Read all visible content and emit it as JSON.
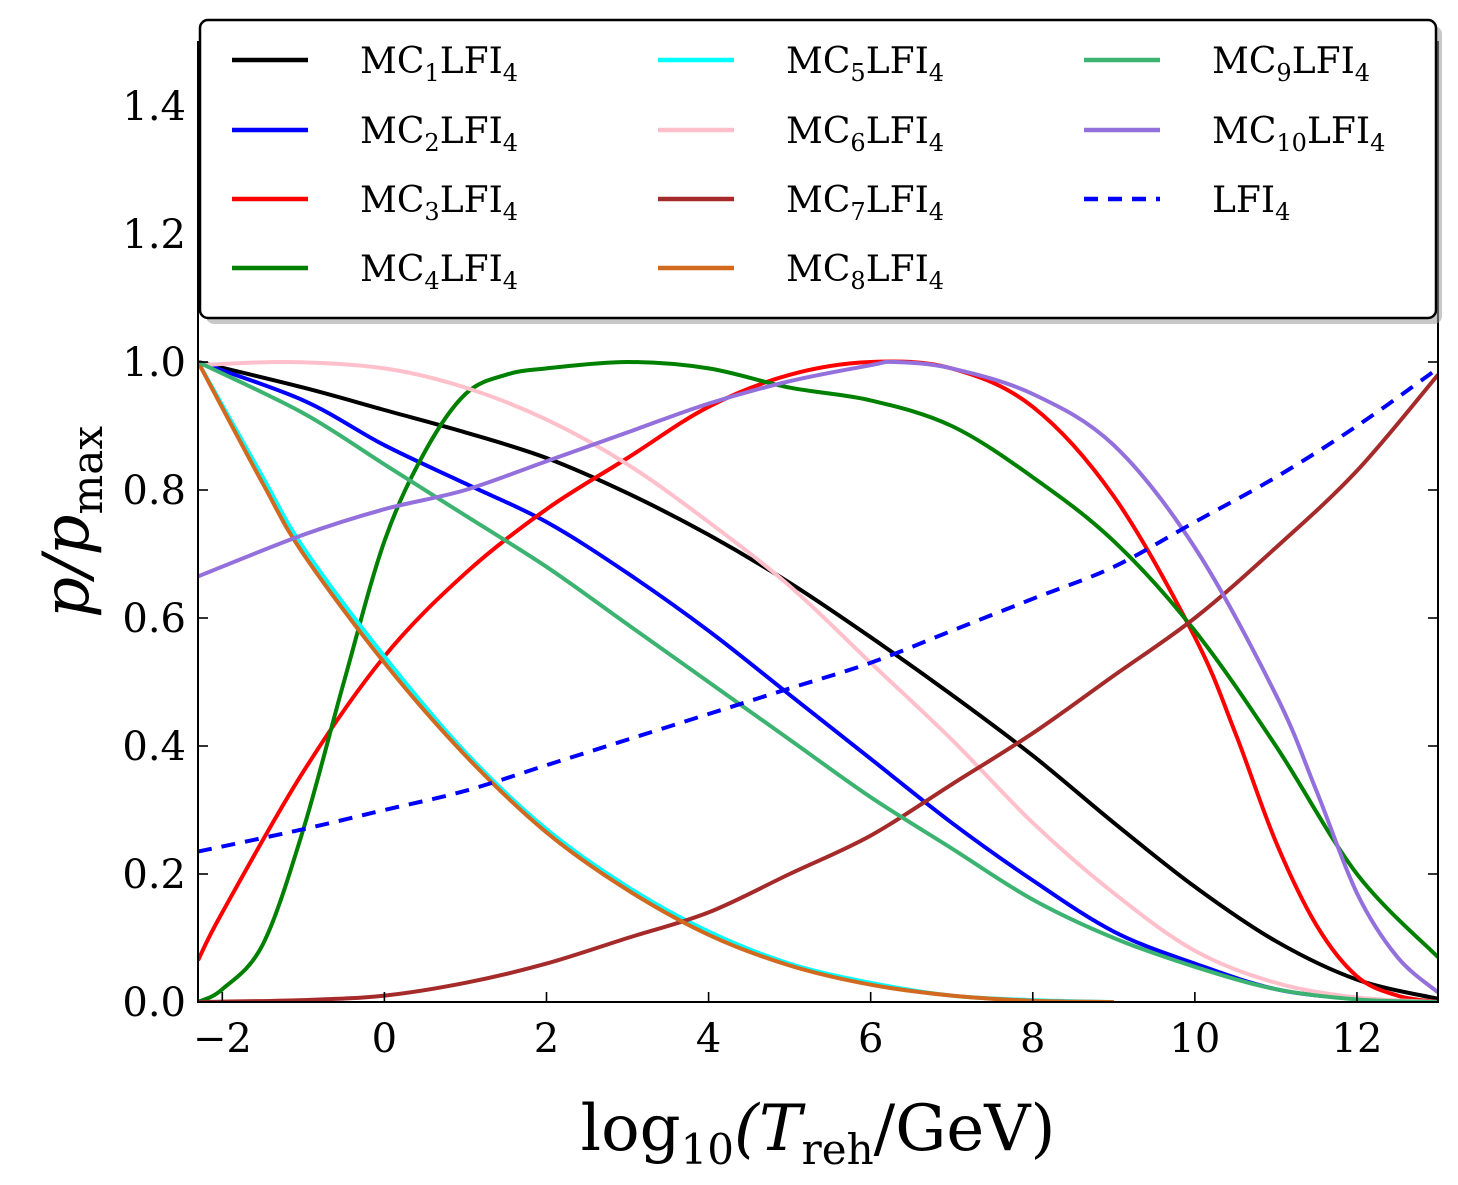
{
  "chart_data": {
    "type": "line",
    "xlabel": {
      "main": "log",
      "sub1": "10",
      "open": "(T",
      "sub2": "reh",
      "close": "/GeV)"
    },
    "ylabel": {
      "main": "p/p",
      "sub": "max"
    },
    "xlim": [
      -2.3,
      13
    ],
    "ylim": [
      0.0,
      1.5
    ],
    "xticks": [
      -2,
      0,
      2,
      4,
      6,
      8,
      10,
      12
    ],
    "xtick_labels": [
      "−2",
      "0",
      "2",
      "4",
      "6",
      "8",
      "10",
      "12"
    ],
    "yticks": [
      0.0,
      0.2,
      0.4,
      0.6,
      0.8,
      1.0,
      1.2,
      1.4
    ],
    "ytick_labels": [
      "0.0",
      "0.2",
      "0.4",
      "0.6",
      "0.8",
      "1.0",
      "1.2",
      "1.4"
    ],
    "legend_position": "top",
    "series": [
      {
        "name": "MC1LFI4",
        "label": {
          "a": "MC",
          "s1": "1",
          "b": "LFI",
          "s2": "4"
        },
        "color": "#000000",
        "dash": "solid",
        "x": [
          -2.3,
          -1,
          0,
          1,
          2,
          3,
          4,
          5,
          6,
          7,
          8,
          9,
          10,
          11,
          12,
          13
        ],
        "y": [
          1.0,
          0.96,
          0.925,
          0.89,
          0.85,
          0.795,
          0.73,
          0.655,
          0.57,
          0.48,
          0.385,
          0.28,
          0.18,
          0.095,
          0.035,
          0.005
        ]
      },
      {
        "name": "MC2LFI4",
        "label": {
          "a": "MC",
          "s1": "2",
          "b": "LFI",
          "s2": "4"
        },
        "color": "#0000ff",
        "dash": "solid",
        "x": [
          -2.3,
          -1,
          0,
          1,
          2,
          3,
          4,
          5,
          6,
          7,
          8,
          9,
          10,
          11,
          12,
          13
        ],
        "y": [
          1.0,
          0.94,
          0.87,
          0.81,
          0.75,
          0.67,
          0.58,
          0.48,
          0.38,
          0.28,
          0.19,
          0.11,
          0.06,
          0.02,
          0.005,
          0.0
        ]
      },
      {
        "name": "MC3LFI4",
        "label": {
          "a": "MC",
          "s1": "3",
          "b": "LFI",
          "s2": "4"
        },
        "color": "#ff0000",
        "dash": "solid",
        "x": [
          -2.3,
          -2,
          -1,
          0,
          1,
          2,
          3,
          4,
          5,
          6,
          7,
          8,
          9,
          10,
          10.5,
          11,
          11.5,
          12,
          12.5,
          13
        ],
        "y": [
          0.065,
          0.14,
          0.36,
          0.54,
          0.67,
          0.77,
          0.85,
          0.93,
          0.98,
          1.0,
          0.99,
          0.93,
          0.79,
          0.57,
          0.42,
          0.25,
          0.12,
          0.04,
          0.01,
          0.0
        ]
      },
      {
        "name": "MC4LFI4",
        "label": {
          "a": "MC",
          "s1": "4",
          "b": "LFI",
          "s2": "4"
        },
        "color": "#008000",
        "dash": "solid",
        "x": [
          -2.3,
          -2,
          -1.5,
          -1,
          -0.5,
          0,
          0.5,
          1,
          1.5,
          2,
          3,
          4,
          5,
          6,
          7,
          8,
          9,
          10,
          11,
          12,
          13
        ],
        "y": [
          0.0,
          0.02,
          0.09,
          0.27,
          0.5,
          0.72,
          0.86,
          0.95,
          0.98,
          0.99,
          1.0,
          0.99,
          0.96,
          0.94,
          0.9,
          0.82,
          0.72,
          0.58,
          0.4,
          0.2,
          0.07
        ]
      },
      {
        "name": "MC5LFI4",
        "label": {
          "a": "MC",
          "s1": "5",
          "b": "LFI",
          "s2": "4"
        },
        "color": "#00ffff",
        "dash": "solid",
        "x": [
          -2.3,
          -1.5,
          -1,
          0,
          1,
          2,
          3,
          4,
          5,
          6,
          7,
          8,
          9
        ],
        "y": [
          1.0,
          0.82,
          0.71,
          0.54,
          0.39,
          0.27,
          0.18,
          0.11,
          0.06,
          0.03,
          0.01,
          0.003,
          0.0
        ]
      },
      {
        "name": "MC6LFI4",
        "label": {
          "a": "MC",
          "s1": "6",
          "b": "LFI",
          "s2": "4"
        },
        "color": "#ffc0cb",
        "dash": "solid",
        "x": [
          -2.3,
          -1.2,
          0,
          1,
          2,
          3,
          4,
          5,
          6,
          7,
          8,
          9,
          10,
          11,
          12,
          13
        ],
        "y": [
          0.995,
          1.0,
          0.99,
          0.96,
          0.91,
          0.84,
          0.75,
          0.65,
          0.53,
          0.41,
          0.28,
          0.17,
          0.08,
          0.03,
          0.007,
          0.0
        ]
      },
      {
        "name": "MC7LFI4",
        "label": {
          "a": "MC",
          "s1": "7",
          "b": "LFI",
          "s2": "4"
        },
        "color": "#a52a2a",
        "dash": "solid",
        "x": [
          -2.3,
          -1,
          0,
          1,
          2,
          3,
          4,
          5,
          6,
          7,
          8,
          9,
          10,
          11,
          12,
          13
        ],
        "y": [
          0.0,
          0.003,
          0.01,
          0.03,
          0.06,
          0.1,
          0.14,
          0.2,
          0.26,
          0.34,
          0.42,
          0.51,
          0.6,
          0.71,
          0.83,
          0.98
        ]
      },
      {
        "name": "MC8LFI4",
        "label": {
          "a": "MC",
          "s1": "8",
          "b": "LFI",
          "s2": "4"
        },
        "color": "#d2691e",
        "dash": "solid",
        "x": [
          -2.3,
          -1.5,
          -1,
          0,
          1,
          2,
          3,
          4,
          5,
          6,
          7,
          8,
          9
        ],
        "y": [
          1.0,
          0.81,
          0.7,
          0.53,
          0.385,
          0.265,
          0.175,
          0.105,
          0.057,
          0.027,
          0.01,
          0.002,
          0.0
        ]
      },
      {
        "name": "MC9LFI4",
        "label": {
          "a": "MC",
          "s1": "9",
          "b": "LFI",
          "s2": "4"
        },
        "color": "#3cb371",
        "dash": "solid",
        "x": [
          -2.3,
          -1,
          0,
          1,
          2,
          3,
          4,
          5,
          6,
          7,
          8,
          9,
          10,
          11,
          12,
          13
        ],
        "y": [
          1.0,
          0.92,
          0.84,
          0.76,
          0.68,
          0.59,
          0.5,
          0.41,
          0.32,
          0.24,
          0.16,
          0.1,
          0.055,
          0.02,
          0.004,
          0.0
        ]
      },
      {
        "name": "MC10LFI4",
        "label": {
          "a": "MC",
          "s1": "10",
          "b": "LFI",
          "s2": "4"
        },
        "color": "#9370db",
        "dash": "solid",
        "x": [
          -2.3,
          -1,
          0,
          1,
          2,
          3,
          4,
          5,
          6,
          6.3,
          7,
          8,
          9,
          10,
          11,
          11.5,
          12,
          12.5,
          13
        ],
        "y": [
          0.665,
          0.73,
          0.77,
          0.8,
          0.845,
          0.89,
          0.935,
          0.97,
          0.995,
          1.0,
          0.99,
          0.95,
          0.87,
          0.71,
          0.48,
          0.33,
          0.17,
          0.07,
          0.015
        ]
      },
      {
        "name": "LFI4",
        "label": {
          "a": "",
          "s1": "",
          "b": "LFI",
          "s2": "4"
        },
        "color": "#0000ff",
        "dash": "dashed",
        "x": [
          -2.3,
          -1,
          0,
          1,
          2,
          3,
          4,
          5,
          6,
          7,
          8,
          9,
          10,
          11,
          12,
          13
        ],
        "y": [
          0.235,
          0.27,
          0.3,
          0.33,
          0.37,
          0.41,
          0.45,
          0.49,
          0.53,
          0.58,
          0.63,
          0.68,
          0.75,
          0.82,
          0.9,
          0.99
        ]
      }
    ]
  }
}
